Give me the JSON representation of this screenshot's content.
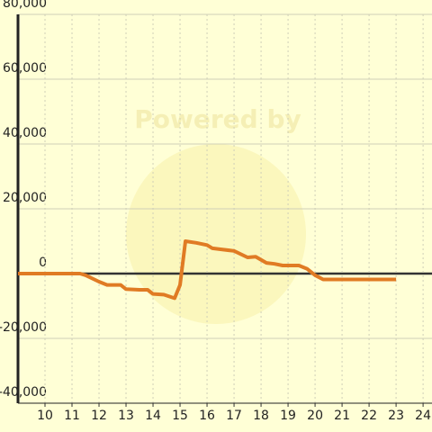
{
  "chart_data": {
    "type": "line",
    "watermark": "Powered by",
    "x": [
      9,
      11.3,
      11.5,
      12,
      12.3,
      12.8,
      13,
      13.5,
      13.8,
      14,
      14.4,
      14.8,
      15,
      15.2,
      15.6,
      16,
      16.2,
      16.5,
      17,
      17.5,
      17.8,
      18.2,
      18.5,
      18.8,
      19.4,
      19.7,
      20,
      20.3,
      23
    ],
    "series": [
      {
        "color": "#e07b24",
        "values": [
          0,
          0,
          -500,
          -2500,
          -3500,
          -3500,
          -4800,
          -5000,
          -5000,
          -6300,
          -6500,
          -7600,
          -3500,
          10000,
          9500,
          8800,
          7800,
          7500,
          7000,
          5000,
          5200,
          3300,
          3000,
          2500,
          2500,
          1500,
          -500,
          -1800,
          -1800
        ]
      }
    ],
    "xlim": [
      9,
      24.33
    ],
    "xticks": [
      10,
      11,
      12,
      13,
      14,
      15,
      16,
      17,
      18,
      19,
      20,
      21,
      22,
      23,
      24
    ],
    "ylim": [
      -40000,
      80000
    ],
    "yticks": [
      {
        "value": -40000,
        "label": "-40,000"
      },
      {
        "value": -20000,
        "label": "-20,000"
      },
      0,
      {
        "value": 20000,
        "label": "20,000"
      },
      {
        "value": 40000,
        "label": "40,000"
      },
      {
        "value": 60000,
        "label": "60,000"
      },
      {
        "value": 80000,
        "label": "80,000"
      }
    ],
    "grid": true
  }
}
